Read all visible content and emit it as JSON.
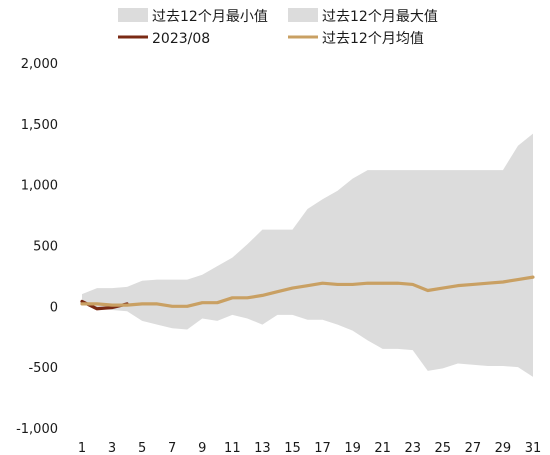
{
  "chart_data": {
    "type": "area",
    "xlim": [
      1,
      31
    ],
    "ylim": [
      -1000,
      2000
    ],
    "x_ticks": [
      1,
      3,
      5,
      7,
      9,
      11,
      13,
      15,
      17,
      19,
      21,
      23,
      25,
      27,
      29,
      31
    ],
    "y_ticks": [
      2000,
      1500,
      1000,
      500,
      0,
      -500,
      -1000
    ],
    "y_tick_labels": [
      "2,000",
      "1,500",
      "1,000",
      "500",
      "0",
      "-500",
      "-1,000"
    ],
    "grid": false,
    "legend_position": "top",
    "colors": {
      "band": "#dcdcdc",
      "current": "#7a2a14",
      "mean": "#c9a063"
    },
    "series": [
      {
        "name": "过去12个月最小值",
        "kind": "band-lower",
        "x": [
          1,
          2,
          3,
          4,
          5,
          6,
          7,
          8,
          9,
          10,
          11,
          12,
          13,
          14,
          15,
          16,
          17,
          18,
          19,
          20,
          21,
          22,
          23,
          24,
          25,
          26,
          27,
          28,
          29,
          30,
          31
        ],
        "values": [
          30,
          -20,
          -30,
          -40,
          -120,
          -150,
          -180,
          -190,
          -100,
          -120,
          -70,
          -100,
          -150,
          -70,
          -70,
          -110,
          -110,
          -150,
          -200,
          -280,
          -350,
          -350,
          -360,
          -530,
          -510,
          -470,
          -480,
          -490,
          -490,
          -500,
          -580
        ]
      },
      {
        "name": "过去12个月最大值",
        "kind": "band-upper",
        "x": [
          1,
          2,
          3,
          4,
          5,
          6,
          7,
          8,
          9,
          10,
          11,
          12,
          13,
          14,
          15,
          16,
          17,
          18,
          19,
          20,
          21,
          22,
          23,
          24,
          25,
          26,
          27,
          28,
          29,
          30,
          31
        ],
        "values": [
          100,
          150,
          150,
          160,
          210,
          220,
          220,
          220,
          260,
          330,
          400,
          510,
          630,
          630,
          630,
          800,
          880,
          950,
          1050,
          1120,
          1120,
          1120,
          1120,
          1120,
          1120,
          1120,
          1120,
          1120,
          1120,
          1320,
          1420
        ]
      },
      {
        "name": "2023/08",
        "kind": "line",
        "x": [
          1,
          2,
          3,
          4
        ],
        "values": [
          40,
          -20,
          -10,
          20
        ]
      },
      {
        "name": "过去12个月均值",
        "kind": "line",
        "x": [
          1,
          2,
          3,
          4,
          5,
          6,
          7,
          8,
          9,
          10,
          11,
          12,
          13,
          14,
          15,
          16,
          17,
          18,
          19,
          20,
          21,
          22,
          23,
          24,
          25,
          26,
          27,
          28,
          29,
          30,
          31
        ],
        "values": [
          20,
          20,
          10,
          10,
          20,
          20,
          0,
          0,
          30,
          30,
          70,
          70,
          90,
          120,
          150,
          170,
          190,
          180,
          180,
          190,
          190,
          190,
          180,
          130,
          150,
          170,
          180,
          190,
          200,
          220,
          240
        ]
      }
    ],
    "legend": [
      {
        "label": "过去12个月最小值",
        "swatch": "box"
      },
      {
        "label": "过去12个月最大值",
        "swatch": "box"
      },
      {
        "label": "2023/08",
        "swatch": "line-current"
      },
      {
        "label": "过去12个月均值",
        "swatch": "line-mean"
      }
    ]
  }
}
